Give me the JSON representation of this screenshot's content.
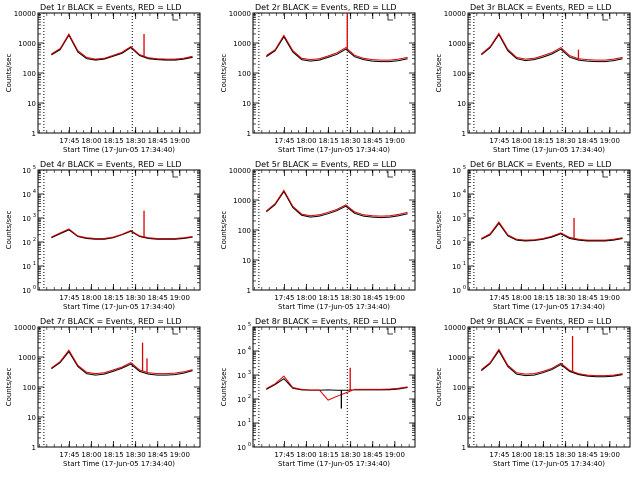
{
  "figure": {
    "x_times": [
      "17:45",
      "18:00",
      "18:15",
      "18:30",
      "18:45",
      "19:00"
    ],
    "x_label": "Start Time (17-Jun-05 17:34:40)",
    "y_label": "Counts/sec",
    "colors": {
      "events": "#000000",
      "lld": "#dd0000"
    }
  },
  "chart_data": [
    {
      "type": "line",
      "title": "Det 1r BLACK = Events, RED = LLD",
      "yscale": "log",
      "ylim": [
        1,
        10000
      ],
      "ytick_style": "plain",
      "yticks": [
        1,
        10,
        100,
        1000,
        10000
      ],
      "ytick_labels": [
        "1",
        "10",
        "100",
        "1000",
        "10000"
      ],
      "x": [
        -2,
        4,
        10,
        16,
        22,
        28,
        34,
        40,
        46,
        52,
        58,
        64,
        70,
        76,
        82,
        88,
        94
      ],
      "series": [
        {
          "name": "Events",
          "color": "#000000",
          "values": [
            400,
            600,
            1800,
            500,
            300,
            270,
            290,
            360,
            450,
            700,
            380,
            300,
            280,
            270,
            270,
            290,
            330
          ]
        },
        {
          "name": "LLD",
          "color": "#dd0000",
          "values": [
            430,
            650,
            2000,
            560,
            330,
            290,
            310,
            390,
            490,
            760,
            410,
            320,
            300,
            290,
            290,
            310,
            360
          ]
        }
      ],
      "spikes": [
        {
          "series": "LLD",
          "x": 61,
          "value": 2000
        }
      ],
      "vlines": [
        -7,
        53
      ]
    },
    {
      "type": "line",
      "title": "Det 2r BLACK = Events, RED = LLD",
      "yscale": "log",
      "ylim": [
        1,
        10000
      ],
      "ytick_style": "plain",
      "yticks": [
        1,
        10,
        100,
        1000,
        10000
      ],
      "ytick_labels": [
        "1",
        "10",
        "100",
        "1000",
        "10000"
      ],
      "x": [
        -2,
        4,
        10,
        16,
        22,
        28,
        34,
        40,
        46,
        52,
        58,
        64,
        70,
        76,
        82,
        88,
        94
      ],
      "series": [
        {
          "name": "Events",
          "color": "#000000",
          "values": [
            350,
            550,
            1600,
            500,
            280,
            250,
            270,
            330,
            420,
            620,
            350,
            280,
            250,
            240,
            240,
            260,
            300
          ]
        },
        {
          "name": "LLD",
          "color": "#dd0000",
          "values": [
            380,
            600,
            1800,
            560,
            310,
            280,
            300,
            370,
            470,
            700,
            390,
            310,
            280,
            270,
            270,
            290,
            330
          ]
        }
      ],
      "spikes": [
        {
          "series": "LLD",
          "x": 53,
          "value": 10000
        }
      ],
      "vlines": [
        -7,
        53
      ]
    },
    {
      "type": "line",
      "title": "Det 3r BLACK = Events, RED = LLD",
      "yscale": "log",
      "ylim": [
        1,
        10000
      ],
      "ytick_style": "plain",
      "yticks": [
        1,
        10,
        100,
        1000,
        10000
      ],
      "ytick_labels": [
        "1",
        "10",
        "100",
        "1000",
        "10000"
      ],
      "x": [
        -2,
        4,
        10,
        16,
        22,
        28,
        34,
        40,
        46,
        52,
        58,
        64,
        70,
        76,
        82,
        88,
        94
      ],
      "series": [
        {
          "name": "Events",
          "color": "#000000",
          "values": [
            400,
            700,
            1900,
            550,
            300,
            260,
            280,
            340,
            430,
            620,
            340,
            270,
            250,
            240,
            240,
            260,
            300
          ]
        },
        {
          "name": "LLD",
          "color": "#dd0000",
          "values": [
            430,
            760,
            2100,
            610,
            330,
            290,
            310,
            380,
            480,
            700,
            380,
            300,
            280,
            270,
            270,
            290,
            330
          ]
        }
      ],
      "spikes": [
        {
          "series": "LLD",
          "x": 64,
          "value": 600
        }
      ],
      "vlines": [
        -7,
        53
      ]
    },
    {
      "type": "line",
      "title": "Det 4r BLACK = Events, RED = LLD",
      "yscale": "log",
      "ylim": [
        1,
        100000
      ],
      "ytick_style": "exp",
      "yticks": [
        1,
        10,
        100,
        1000,
        10000,
        100000
      ],
      "ytick_labels": [
        "10",
        "10",
        "10",
        "10",
        "10",
        "10"
      ],
      "ytick_exps": [
        "0",
        "1",
        "2",
        "3",
        "4",
        "5"
      ],
      "x": [
        -2,
        4,
        10,
        16,
        22,
        28,
        34,
        40,
        46,
        52,
        58,
        64,
        70,
        76,
        82,
        88,
        94
      ],
      "series": [
        {
          "name": "Events",
          "color": "#000000",
          "values": [
            150,
            220,
            320,
            170,
            140,
            130,
            130,
            150,
            200,
            280,
            170,
            140,
            130,
            130,
            130,
            140,
            160
          ]
        },
        {
          "name": "LLD",
          "color": "#dd0000",
          "values": [
            160,
            240,
            350,
            180,
            150,
            140,
            140,
            160,
            210,
            300,
            180,
            150,
            140,
            140,
            140,
            150,
            170
          ]
        }
      ],
      "spikes": [
        {
          "series": "LLD",
          "x": 61,
          "value": 2000
        }
      ],
      "vlines": [
        -7,
        53
      ]
    },
    {
      "type": "line",
      "title": "Det 5r BLACK = Events, RED = LLD",
      "yscale": "log",
      "ylim": [
        1,
        10000
      ],
      "ytick_style": "plain",
      "yticks": [
        1,
        10,
        100,
        1000,
        10000
      ],
      "ytick_labels": [
        "1",
        "10",
        "100",
        "1000",
        "10000"
      ],
      "x": [
        -2,
        4,
        10,
        16,
        22,
        28,
        34,
        40,
        46,
        52,
        58,
        64,
        70,
        76,
        82,
        88,
        94
      ],
      "series": [
        {
          "name": "Events",
          "color": "#000000",
          "values": [
            400,
            700,
            1900,
            560,
            310,
            270,
            290,
            350,
            440,
            620,
            360,
            290,
            270,
            260,
            270,
            300,
            350
          ]
        },
        {
          "name": "LLD",
          "color": "#dd0000",
          "values": [
            430,
            760,
            2100,
            620,
            340,
            300,
            320,
            390,
            490,
            690,
            400,
            320,
            300,
            290,
            300,
            330,
            390
          ]
        }
      ],
      "spikes": [],
      "vlines": [
        -7,
        53
      ]
    },
    {
      "type": "line",
      "title": "Det 6r BLACK = Events, RED = LLD",
      "yscale": "log",
      "ylim": [
        1,
        100000
      ],
      "ytick_style": "exp",
      "yticks": [
        1,
        10,
        100,
        1000,
        10000,
        100000
      ],
      "ytick_labels": [
        "10",
        "10",
        "10",
        "10",
        "10",
        "10"
      ],
      "ytick_exps": [
        "0",
        "1",
        "2",
        "3",
        "4",
        "5"
      ],
      "x": [
        -2,
        4,
        10,
        16,
        22,
        28,
        34,
        40,
        46,
        52,
        58,
        64,
        70,
        76,
        82,
        88,
        94
      ],
      "series": [
        {
          "name": "Events",
          "color": "#000000",
          "values": [
            130,
            200,
            600,
            180,
            120,
            110,
            115,
            130,
            160,
            220,
            140,
            120,
            110,
            110,
            110,
            120,
            140
          ]
        },
        {
          "name": "LLD",
          "color": "#dd0000",
          "values": [
            140,
            220,
            680,
            200,
            130,
            120,
            125,
            140,
            175,
            240,
            155,
            130,
            120,
            120,
            120,
            130,
            150
          ]
        }
      ],
      "spikes": [
        {
          "series": "LLD",
          "x": 61,
          "value": 1000
        }
      ],
      "vlines": [
        -7,
        53
      ]
    },
    {
      "type": "line",
      "title": "Det 7r BLACK = Events, RED = LLD",
      "yscale": "log",
      "ylim": [
        1,
        10000
      ],
      "ytick_style": "plain",
      "yticks": [
        1,
        10,
        100,
        1000,
        10000
      ],
      "ytick_labels": [
        "1",
        "10",
        "100",
        "1000",
        "10000"
      ],
      "x": [
        -2,
        4,
        10,
        16,
        22,
        28,
        34,
        40,
        46,
        52,
        58,
        64,
        70,
        76,
        82,
        88,
        94
      ],
      "series": [
        {
          "name": "Events",
          "color": "#000000",
          "values": [
            400,
            650,
            1500,
            480,
            280,
            250,
            270,
            330,
            420,
            580,
            330,
            270,
            250,
            250,
            260,
            290,
            350
          ]
        },
        {
          "name": "LLD",
          "color": "#dd0000",
          "values": [
            430,
            700,
            1700,
            530,
            310,
            280,
            300,
            370,
            460,
            650,
            370,
            300,
            280,
            280,
            290,
            320,
            380
          ]
        }
      ],
      "spikes": [
        {
          "series": "LLD",
          "x": 60,
          "value": 3000
        },
        {
          "series": "LLD",
          "x": 63,
          "value": 900
        }
      ],
      "vlines": [
        -7,
        53
      ]
    },
    {
      "type": "line",
      "title": "Det 8r BLACK = Events, RED = LLD",
      "yscale": "log",
      "ylim": [
        1,
        100000
      ],
      "ytick_style": "exp",
      "yticks": [
        1,
        10,
        100,
        1000,
        10000,
        100000
      ],
      "ytick_labels": [
        "10",
        "10",
        "10",
        "10",
        "10",
        "10"
      ],
      "ytick_exps": [
        "0",
        "1",
        "2",
        "3",
        "4",
        "5"
      ],
      "x": [
        -2,
        4,
        10,
        16,
        22,
        28,
        34,
        40,
        46,
        52,
        58,
        64,
        70,
        76,
        82,
        88,
        94
      ],
      "series": [
        {
          "name": "Events",
          "color": "#000000",
          "values": [
            250,
            400,
            700,
            280,
            240,
            230,
            230,
            240,
            230,
            230,
            240,
            240,
            240,
            240,
            245,
            260,
            300
          ]
        },
        {
          "name": "LLD",
          "color": "#dd0000",
          "values": [
            270,
            430,
            900,
            300,
            250,
            240,
            240,
            90,
            130,
            180,
            250,
            250,
            250,
            250,
            260,
            280,
            320
          ]
        }
      ],
      "spikes": [
        {
          "series": "LLD",
          "x": 55,
          "value": 2000
        },
        {
          "series": "Events",
          "x": 49,
          "value": 40
        }
      ],
      "vlines": [
        -7,
        53
      ]
    },
    {
      "type": "line",
      "title": "Det 9r BLACK = Events, RED = LLD",
      "yscale": "log",
      "ylim": [
        1,
        10000
      ],
      "ytick_style": "plain",
      "yticks": [
        1,
        10,
        100,
        1000,
        10000
      ],
      "ytick_labels": [
        "1",
        "10",
        "100",
        "1000",
        "10000"
      ],
      "x": [
        -2,
        4,
        10,
        16,
        22,
        28,
        34,
        40,
        46,
        52,
        58,
        64,
        70,
        76,
        82,
        88,
        94
      ],
      "series": [
        {
          "name": "Events",
          "color": "#000000",
          "values": [
            350,
            600,
            1600,
            480,
            270,
            240,
            250,
            300,
            380,
            560,
            330,
            260,
            230,
            220,
            220,
            230,
            260
          ]
        },
        {
          "name": "LLD",
          "color": "#dd0000",
          "values": [
            380,
            650,
            1800,
            530,
            300,
            270,
            280,
            330,
            420,
            620,
            360,
            280,
            250,
            240,
            240,
            250,
            280
          ]
        }
      ],
      "spikes": [
        {
          "series": "LLD",
          "x": 60,
          "value": 5000
        }
      ],
      "vlines": [
        -7,
        53
      ]
    }
  ]
}
